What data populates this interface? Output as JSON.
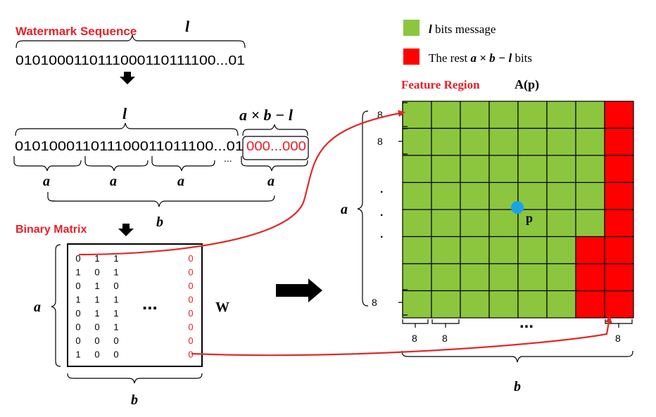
{
  "colors": {
    "red_title": "#e8202a",
    "green_cell": "#8cc63f",
    "red_cell": "#ff0000",
    "arrow_red": "#e02a2a",
    "point_blue": "#1aa3e8",
    "ink": "#000000"
  },
  "watermark": {
    "title": "Watermark Sequence",
    "length_label": "l",
    "sequence": "0101000110111000110111100...01"
  },
  "padded": {
    "length_label": "l",
    "pad_label": "a × b − l",
    "black_text": "010100011011100011011100...01",
    "red_text": "000...000",
    "ellipsis": "...",
    "segment_labels": [
      "a",
      "a",
      "a",
      "a"
    ],
    "total_label": "b"
  },
  "binary_matrix": {
    "title": "Binary Matrix",
    "rows": [
      [
        "0",
        "1",
        "1"
      ],
      [
        "1",
        "0",
        "1"
      ],
      [
        "0",
        "1",
        "0"
      ],
      [
        "1",
        "1",
        "1"
      ],
      [
        "0",
        "1",
        "1"
      ],
      [
        "0",
        "0",
        "1"
      ],
      [
        "0",
        "0",
        "0"
      ],
      [
        "1",
        "0",
        "0"
      ]
    ],
    "last_col": [
      "0",
      "0",
      "0",
      "0",
      "0",
      "0",
      "0",
      "0"
    ],
    "ellipsis": "...",
    "name": "W",
    "height_label": "a",
    "width_label": "b"
  },
  "legend": {
    "items": [
      {
        "symbol": "l",
        "text": " bits message"
      },
      {
        "prefix": "The rest ",
        "symbol": "a × b − l",
        "text": " bits"
      }
    ]
  },
  "feature_region": {
    "title": "Feature Region",
    "name": "A(p)",
    "point_label": "p",
    "rows": 8,
    "cols": 8,
    "red_rows_col7": [
      0,
      1,
      2,
      3,
      4,
      5,
      6,
      7
    ],
    "red_rows_col6": [
      5,
      6,
      7
    ],
    "left_cell_labels": [
      "8",
      "8",
      "8"
    ],
    "left_dots": "·",
    "height_label": "a",
    "bottom_cell_labels": [
      "8",
      "8",
      "8"
    ],
    "bottom_dots": "...",
    "width_label": "b"
  }
}
